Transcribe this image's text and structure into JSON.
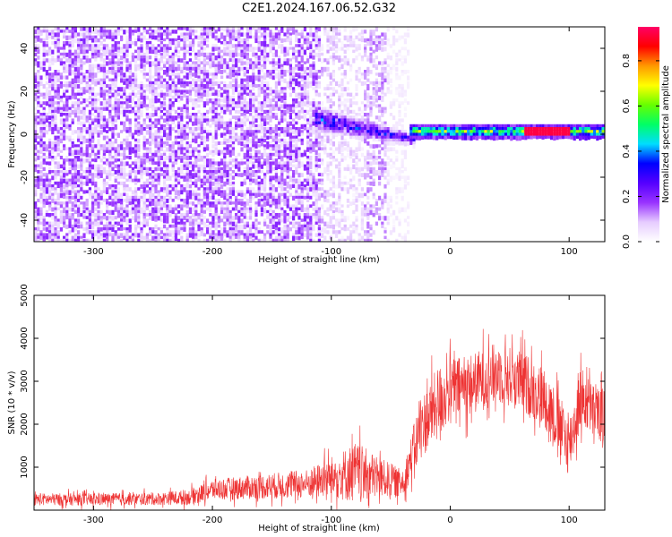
{
  "title": "C2E1.2024.167.06.52.G32",
  "colors": {
    "signal": "#ee3333",
    "frame": "#000000"
  },
  "chart_data": [
    {
      "type": "heatmap",
      "name": "spectrogram",
      "xlabel": "Height of straight line (km)",
      "ylabel": "Frequency (Hz)",
      "xlim": [
        -350,
        130
      ],
      "ylim": [
        -50,
        50
      ],
      "xticks": [
        -300,
        -200,
        -100,
        0,
        100
      ],
      "yticks": [
        -40,
        -20,
        0,
        20,
        40
      ],
      "xtick_labels": [
        "-300",
        "-200",
        "-100",
        "0",
        "100"
      ],
      "ytick_labels": [
        "-40",
        "-20",
        "0",
        "20",
        "40"
      ],
      "colorbar": {
        "label": "Normalized spectral amplitude",
        "range": [
          0.0,
          0.95
        ],
        "ticks": [
          0.0,
          0.2,
          0.4,
          0.6,
          0.8
        ],
        "tick_labels": [
          "0.0",
          "0.2",
          "0.4",
          "0.6",
          "0.8"
        ],
        "colormap": [
          "#ffffff",
          "#e6ccff",
          "#9933ff",
          "#5500ff",
          "#0000ff",
          "#00ddff",
          "#00ff66",
          "#66ff00",
          "#ffff00",
          "#ff9900",
          "#ff0000",
          "#ff0066"
        ]
      },
      "regions": [
        {
          "description": "broadband noise",
          "x_range": [
            -350,
            -110
          ],
          "freq_range": [
            -50,
            50
          ],
          "amplitude": 0.12
        },
        {
          "description": "fading noise",
          "x_range": [
            -110,
            -35
          ],
          "freq_range": [
            -50,
            50
          ],
          "amplitude": 0.04
        },
        {
          "description": "converging signal",
          "x_range": [
            -115,
            -30
          ],
          "center_freq_start": 8,
          "center_freq_end": -2,
          "amplitude": 0.3
        },
        {
          "description": "steady carrier",
          "x_range": [
            -35,
            130
          ],
          "center_freq": 2,
          "amplitude": 0.55
        }
      ]
    },
    {
      "type": "line",
      "name": "snr",
      "xlabel": "Height of straight line (km)",
      "ylabel": "SNR (10 * v/v)",
      "xlim": [
        -350,
        130
      ],
      "ylim": [
        0,
        5000
      ],
      "xticks": [
        -300,
        -200,
        -100,
        0,
        100
      ],
      "yticks": [
        1000,
        2000,
        3000,
        4000,
        5000
      ],
      "xtick_labels": [
        "-300",
        "-200",
        "-100",
        "0",
        "100"
      ],
      "ytick_labels": [
        "1000",
        "2000",
        "3000",
        "4000",
        "5000"
      ],
      "series": [
        {
          "name": "SNR",
          "color": "#ee3333",
          "x": [
            -350,
            -300,
            -250,
            -220,
            -200,
            -150,
            -120,
            -100,
            -80,
            -60,
            -40,
            -25,
            -15,
            -10,
            0,
            20,
            40,
            60,
            80,
            100,
            110,
            120,
            130
          ],
          "mean": [
            250,
            250,
            260,
            300,
            480,
            560,
            620,
            760,
            880,
            760,
            620,
            1900,
            2300,
            2500,
            2800,
            2950,
            3200,
            3000,
            2600,
            1500,
            2650,
            2300,
            2200
          ],
          "spread": [
            180,
            180,
            180,
            220,
            300,
            380,
            420,
            600,
            900,
            600,
            400,
            900,
            1000,
            1100,
            900,
            900,
            900,
            900,
            900,
            900,
            900,
            800,
            800
          ]
        }
      ]
    }
  ]
}
